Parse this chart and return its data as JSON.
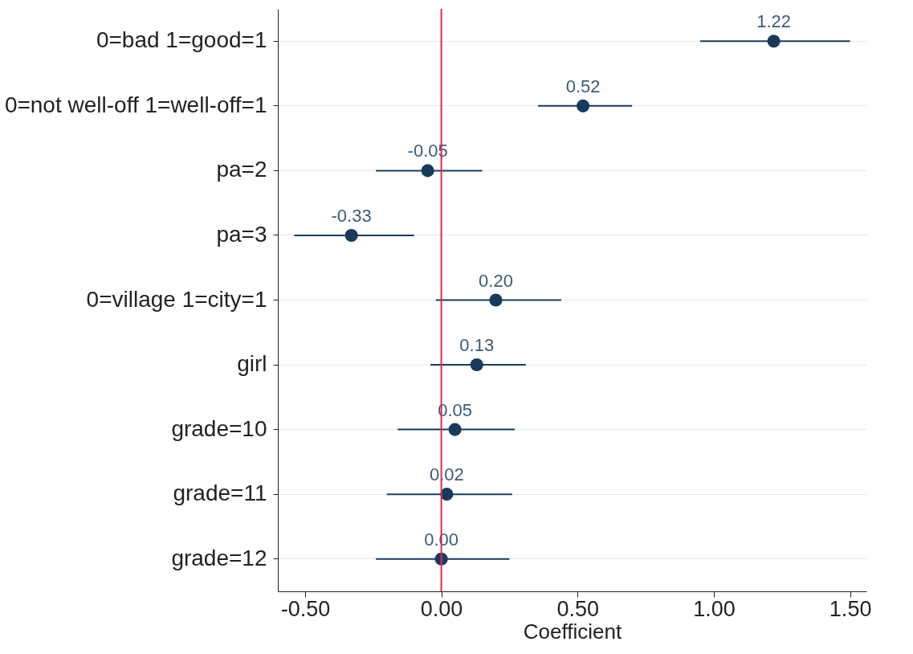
{
  "chart_data": {
    "type": "scatter",
    "orientation": "horizontal",
    "xlabel": "Coefficient",
    "categories": [
      "0=bad 1=good=1",
      "0=not well-off 1=well-off=1",
      "pa=2",
      "pa=3",
      "0=village 1=city=1",
      "girl",
      "grade=10",
      "grade=11",
      "grade=12"
    ],
    "series": [
      {
        "color": "#1a3a5c",
        "values": [
          1.22,
          0.52,
          -0.05,
          -0.33,
          0.2,
          0.13,
          0.05,
          0.02,
          0.0
        ],
        "errors": [
          [
            0.95,
            1.5
          ],
          [
            0.355,
            0.7
          ],
          [
            -0.24,
            0.15
          ],
          [
            -0.54,
            -0.1
          ],
          [
            -0.02,
            0.44
          ],
          [
            -0.04,
            0.31
          ],
          [
            -0.16,
            0.27
          ],
          [
            -0.2,
            0.26
          ],
          [
            -0.24,
            0.25
          ]
        ],
        "value_labels": [
          "1.22",
          "0.52",
          "-0.05",
          "-0.33",
          "0.20",
          "0.13",
          "0.05",
          "0.02",
          "0.00"
        ]
      }
    ],
    "xlim": [
      -0.6,
      1.56
    ],
    "xticks": [
      {
        "value": -0.5,
        "label": "-0.50"
      },
      {
        "value": 0,
        "label": "0.00"
      },
      {
        "value": 0.5,
        "label": "0.50"
      },
      {
        "value": 1,
        "label": "1.00"
      },
      {
        "value": 1.5,
        "label": "1.50"
      }
    ],
    "ref_lines": [
      {
        "axis": "x",
        "value": 0,
        "color": "#e8274b"
      }
    ],
    "grid": "y",
    "marker": "circle"
  }
}
